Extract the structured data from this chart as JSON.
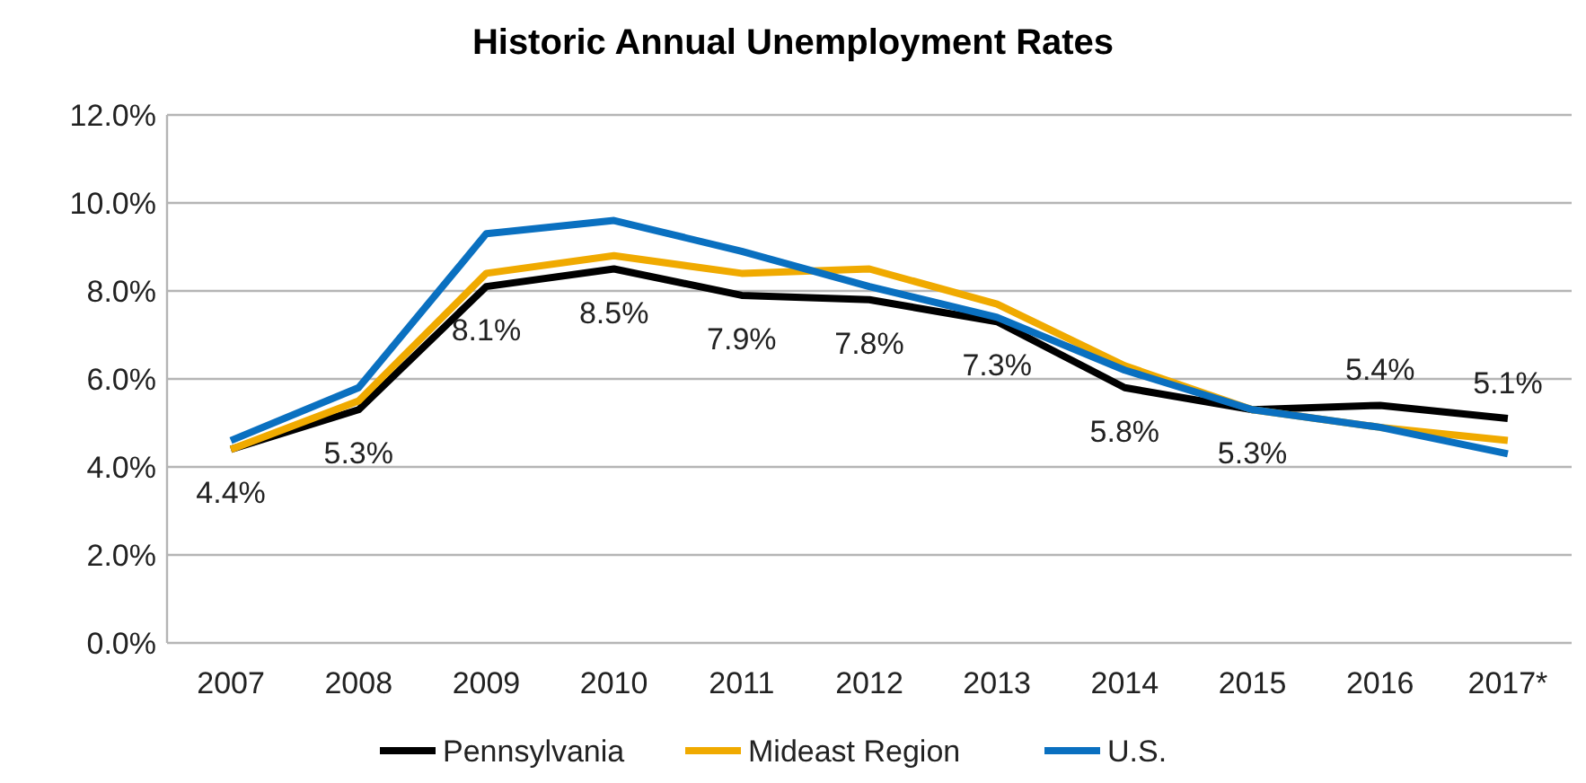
{
  "chart_data": {
    "type": "line",
    "title": "Historic Annual Unemployment Rates",
    "categories": [
      "2007",
      "2008",
      "2009",
      "2010",
      "2011",
      "2012",
      "2013",
      "2014",
      "2015",
      "2016",
      "2017*"
    ],
    "series": [
      {
        "name": "Pennsylvania",
        "color": "#000000",
        "values": [
          4.4,
          5.3,
          8.1,
          8.5,
          7.9,
          7.8,
          7.3,
          5.8,
          5.3,
          5.4,
          5.1
        ],
        "value_labels": [
          "4.4%",
          "5.3%",
          "8.1%",
          "8.5%",
          "7.9%",
          "7.8%",
          "7.3%",
          "5.8%",
          "5.3%",
          "5.4%",
          "5.1%"
        ]
      },
      {
        "name": "Mideast Region",
        "color": "#f0aa00",
        "values": [
          4.4,
          5.5,
          8.4,
          8.8,
          8.4,
          8.5,
          7.7,
          6.3,
          5.3,
          4.9,
          4.6
        ]
      },
      {
        "name": "U.S.",
        "color": "#0a70c0",
        "values": [
          4.6,
          5.8,
          9.3,
          9.6,
          8.9,
          8.1,
          7.4,
          6.2,
          5.3,
          4.9,
          4.3
        ]
      }
    ],
    "ylim": [
      0,
      12
    ],
    "yticks": [
      {
        "value": 0,
        "label": "0.0%"
      },
      {
        "value": 2,
        "label": "2.0%"
      },
      {
        "value": 4,
        "label": "4.0%"
      },
      {
        "value": 6,
        "label": "6.0%"
      },
      {
        "value": 8,
        "label": "8.0%"
      },
      {
        "value": 10,
        "label": "10.0%"
      },
      {
        "value": 12,
        "label": "12.0%"
      }
    ],
    "grid": "y",
    "legend": "bottom",
    "marker": "none",
    "line_style": "solid"
  }
}
